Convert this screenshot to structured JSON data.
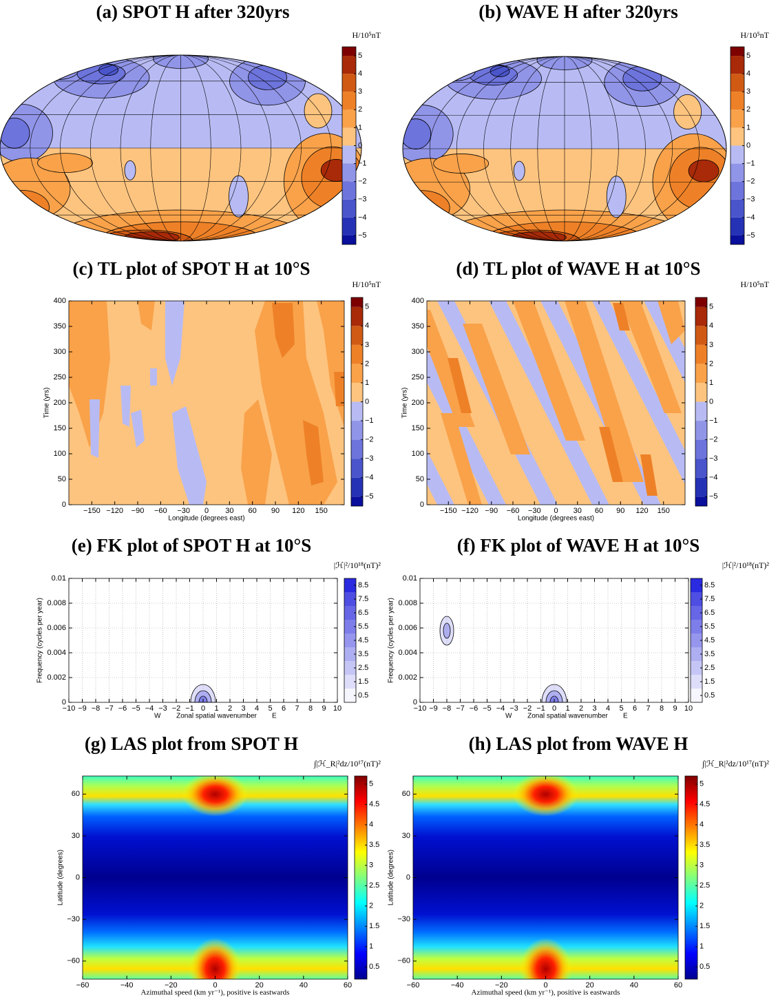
{
  "chart_data": [
    {
      "type": "map",
      "title": "(a) SPOT H after 320yrs",
      "colorbar_label": "H/10⁵nT",
      "clim": [
        -5.5,
        5.5
      ],
      "cticks": [
        {
          "value": -5,
          "label": "−5"
        },
        {
          "value": -4,
          "label": "−4"
        },
        {
          "value": -3,
          "label": "−3"
        },
        {
          "value": -2,
          "label": "−2"
        },
        {
          "value": -1,
          "label": "−1"
        },
        0,
        1,
        2,
        3,
        4,
        5
      ],
      "colors": [
        "#0a0f9c",
        "#2632b5",
        "#4a55cc",
        "#6d74dc",
        "#9195e8",
        "#b8bbf3",
        "#fdc47f",
        "#f9a24a",
        "#ee8127",
        "#d05a14",
        "#a82a08",
        "#7d0000"
      ]
    },
    {
      "type": "map",
      "title": "(b) WAVE H after 320yrs",
      "colorbar_label": "H/10⁵nT",
      "clim": [
        -5.5,
        5.5
      ],
      "cticks": [
        {
          "value": -5,
          "label": "−5"
        },
        {
          "value": -4,
          "label": "−4"
        },
        {
          "value": -3,
          "label": "−3"
        },
        {
          "value": -2,
          "label": "−2"
        },
        {
          "value": -1,
          "label": "−1"
        },
        0,
        1,
        2,
        3,
        4,
        5
      ],
      "colors": [
        "#0a0f9c",
        "#2632b5",
        "#4a55cc",
        "#6d74dc",
        "#9195e8",
        "#b8bbf3",
        "#fdc47f",
        "#f9a24a",
        "#ee8127",
        "#d05a14",
        "#a82a08",
        "#7d0000"
      ]
    },
    {
      "type": "filled_contour",
      "title": "(c) TL plot of SPOT H at 10°S",
      "colorbar_label": "H/10⁵nT",
      "clim": [
        -5.5,
        5.5
      ],
      "cticks": [
        {
          "value": -5,
          "label": "−5"
        },
        {
          "value": -4,
          "label": "−4"
        },
        {
          "value": -3,
          "label": "−3"
        },
        {
          "value": -2,
          "label": "−2"
        },
        {
          "value": -1,
          "label": "−1"
        },
        0,
        1,
        2,
        3,
        4,
        5
      ],
      "colors": [
        "#0a0f9c",
        "#2632b5",
        "#4a55cc",
        "#6d74dc",
        "#9195e8",
        "#b8bbf3",
        "#fdc47f",
        "#f9a24a",
        "#ee8127",
        "#d05a14",
        "#a82a08",
        "#7d0000"
      ],
      "xlabel": "Longitude (degrees east)",
      "ylabel": "Time (yrs)",
      "xlim": [
        -180,
        180
      ],
      "ylim": [
        0,
        400
      ],
      "xticks": [
        {
          "value": -150,
          "label": "−150"
        },
        {
          "value": -120,
          "label": "−120"
        },
        {
          "value": -90,
          "label": "−90"
        },
        {
          "value": -60,
          "label": "−60"
        },
        {
          "value": -30,
          "label": "−30"
        },
        0,
        30,
        60,
        90,
        120,
        150
      ],
      "yticks": [
        0,
        50,
        100,
        150,
        200,
        250,
        300,
        350,
        400
      ],
      "grid": false
    },
    {
      "type": "filled_contour",
      "title": "(d) TL plot of WAVE H at 10°S",
      "colorbar_label": "H/10⁵nT",
      "clim": [
        -5.5,
        5.5
      ],
      "cticks": [
        {
          "value": -5,
          "label": "−5"
        },
        {
          "value": -4,
          "label": "−4"
        },
        {
          "value": -3,
          "label": "−3"
        },
        {
          "value": -2,
          "label": "−2"
        },
        {
          "value": -1,
          "label": "−1"
        },
        0,
        1,
        2,
        3,
        4,
        5
      ],
      "colors": [
        "#0a0f9c",
        "#2632b5",
        "#4a55cc",
        "#6d74dc",
        "#9195e8",
        "#b8bbf3",
        "#fdc47f",
        "#f9a24a",
        "#ee8127",
        "#d05a14",
        "#a82a08",
        "#7d0000"
      ],
      "xlabel": "Longitude (degrees east)",
      "ylabel": "Time (yrs)",
      "xlim": [
        -180,
        180
      ],
      "ylim": [
        0,
        400
      ],
      "xticks": [
        {
          "value": -150,
          "label": "−150"
        },
        {
          "value": -120,
          "label": "−120"
        },
        {
          "value": -90,
          "label": "−90"
        },
        {
          "value": -60,
          "label": "−60"
        },
        {
          "value": -30,
          "label": "−30"
        },
        0,
        30,
        60,
        90,
        120,
        150
      ],
      "yticks": [
        0,
        50,
        100,
        150,
        200,
        250,
        300,
        350,
        400
      ],
      "grid": false
    },
    {
      "type": "contour",
      "title": "(e) FK plot of SPOT H at 10°S",
      "colorbar_label": "|ℋ|²/10¹⁸(nT)²",
      "clim": [
        0,
        9
      ],
      "cticks": [
        0.5,
        1.5,
        2.5,
        3.5,
        4.5,
        5.5,
        6.5,
        7.5,
        8.5
      ],
      "colors": [
        "#f6f6fe",
        "#dedefa",
        "#c6c6f6",
        "#aeaef2",
        "#9696ee",
        "#7e7eea",
        "#6666e6",
        "#4e4ee3",
        "#2a2ae0"
      ],
      "xlabel": "Zonal spatial wavenumber",
      "xlabel_left": "W",
      "xlabel_right": "E",
      "ylabel": "Frequency (cycles per year)",
      "xlim": [
        -10,
        10
      ],
      "ylim": [
        0,
        0.01
      ],
      "xticks": [
        {
          "value": -10,
          "label": "−10"
        },
        {
          "value": -9,
          "label": "−9"
        },
        {
          "value": -8,
          "label": "−8"
        },
        {
          "value": -7,
          "label": "−7"
        },
        {
          "value": -6,
          "label": "−6"
        },
        {
          "value": -5,
          "label": "−5"
        },
        {
          "value": -4,
          "label": "−4"
        },
        {
          "value": -3,
          "label": "−3"
        },
        {
          "value": -2,
          "label": "−2"
        },
        {
          "value": -1,
          "label": "−1"
        },
        0,
        1,
        2,
        3,
        4,
        5,
        6,
        7,
        8,
        9,
        10
      ],
      "yticks": [
        0,
        0.002,
        0.004,
        0.006,
        0.008,
        0.01
      ],
      "grid": true
    },
    {
      "type": "contour",
      "title": "(f) FK plot of WAVE H at 10°S",
      "colorbar_label": "|ℋ|²/10¹⁸(nT)²",
      "clim": [
        0,
        9
      ],
      "cticks": [
        0.5,
        1.5,
        2.5,
        3.5,
        4.5,
        5.5,
        6.5,
        7.5,
        8.5
      ],
      "colors": [
        "#f6f6fe",
        "#dedefa",
        "#c6c6f6",
        "#aeaef2",
        "#9696ee",
        "#7e7eea",
        "#6666e6",
        "#4e4ee3",
        "#2a2ae0"
      ],
      "xlabel": "Zonal spatial wavenumber",
      "xlabel_left": "W",
      "xlabel_right": "E",
      "ylabel": "Frequency (cycles per year)",
      "xlim": [
        -10,
        10
      ],
      "ylim": [
        0,
        0.01
      ],
      "xticks": [
        {
          "value": -10,
          "label": "−10"
        },
        {
          "value": -9,
          "label": "−9"
        },
        {
          "value": -8,
          "label": "−8"
        },
        {
          "value": -7,
          "label": "−7"
        },
        {
          "value": -6,
          "label": "−6"
        },
        {
          "value": -5,
          "label": "−5"
        },
        {
          "value": -4,
          "label": "−4"
        },
        {
          "value": -3,
          "label": "−3"
        },
        {
          "value": -2,
          "label": "−2"
        },
        {
          "value": -1,
          "label": "−1"
        },
        0,
        1,
        2,
        3,
        4,
        5,
        6,
        7,
        8,
        9,
        10
      ],
      "yticks": [
        0,
        0.002,
        0.004,
        0.006,
        0.008,
        0.01
      ],
      "grid": true
    },
    {
      "type": "heatmap",
      "title": "(g) LAS plot from SPOT H",
      "colorbar_label": "∫|ℋ_R|²dz/10¹⁷(nT)²",
      "clim": [
        0.2,
        5.2
      ],
      "colormap": "jet",
      "cticks": [
        0.5,
        1,
        1.5,
        2,
        2.5,
        3,
        3.5,
        4,
        4.5,
        5
      ],
      "xlabel": "Azimuthal speed (km yr⁻¹), positive is eastwards",
      "ylabel": "Latitude (degrees)",
      "xlim": [
        -60,
        60
      ],
      "ylim": [
        -73,
        73
      ],
      "xticks": [
        {
          "value": -60,
          "label": "−60"
        },
        {
          "value": -40,
          "label": "−40"
        },
        {
          "value": -20,
          "label": "−20"
        },
        0,
        20,
        40,
        60
      ],
      "yticks": [
        {
          "value": -60,
          "label": "−60"
        },
        {
          "value": -30,
          "label": "−30"
        },
        0,
        30,
        60
      ],
      "grid": false
    },
    {
      "type": "heatmap",
      "title": "(h) LAS plot from WAVE H",
      "colorbar_label": "∫|ℋ_R|²dz/10¹⁷(nT)²",
      "clim": [
        0.2,
        5.2
      ],
      "colormap": "jet",
      "cticks": [
        0.5,
        1,
        1.5,
        2,
        2.5,
        3,
        3.5,
        4,
        4.5,
        5
      ],
      "xlabel": "Azimuthal speed (km yr⁻¹), positive is eastwards",
      "ylabel": "Latitude (degrees)",
      "xlim": [
        -60,
        60
      ],
      "ylim": [
        -73,
        73
      ],
      "xticks": [
        {
          "value": -60,
          "label": "−60"
        },
        {
          "value": -40,
          "label": "−40"
        },
        {
          "value": -20,
          "label": "−20"
        },
        0,
        20,
        40,
        60
      ],
      "yticks": [
        {
          "value": -60,
          "label": "−60"
        },
        {
          "value": -30,
          "label": "−30"
        },
        0,
        30,
        60
      ],
      "grid": false
    }
  ]
}
